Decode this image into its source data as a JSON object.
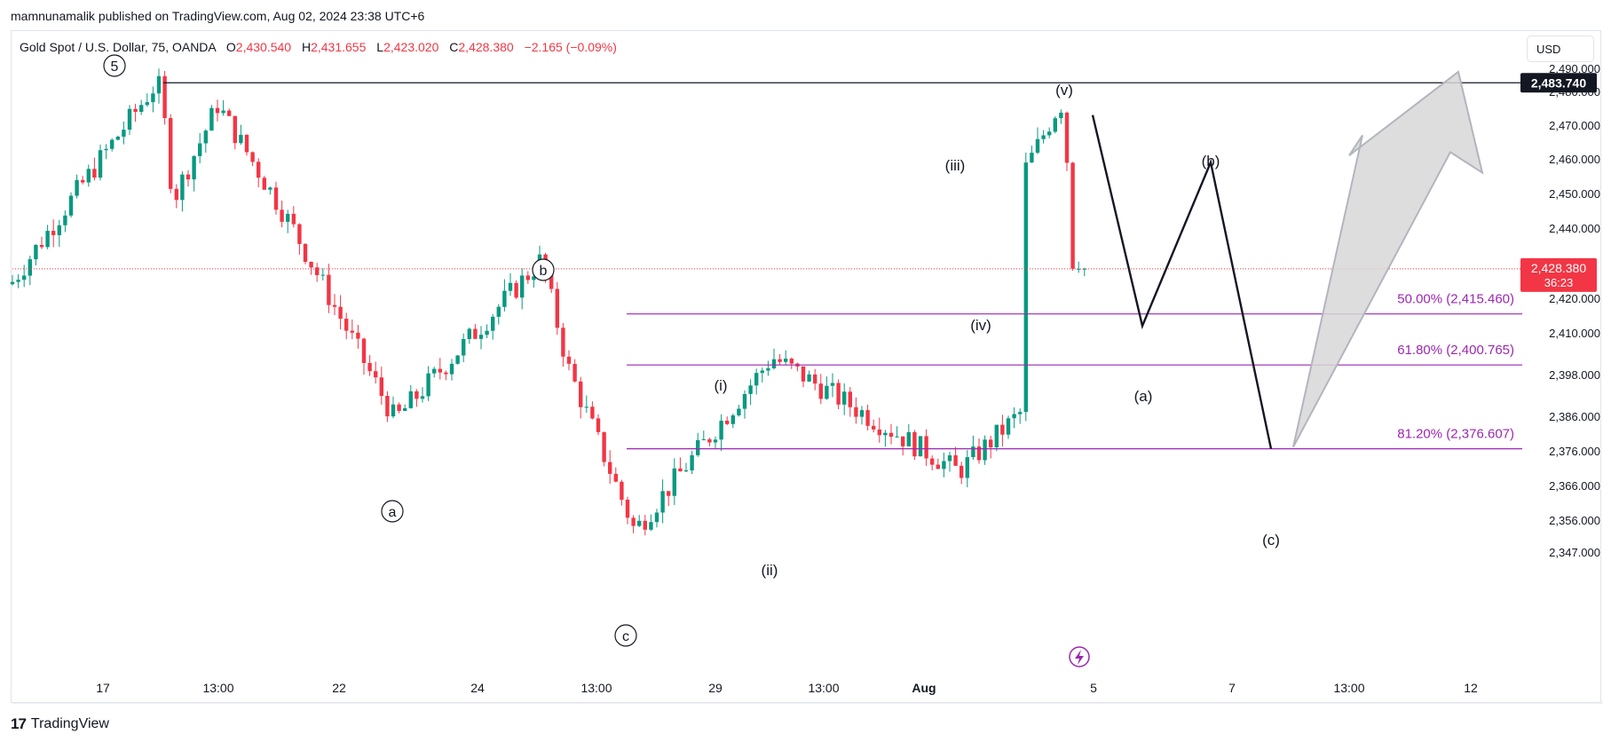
{
  "header": {
    "publish_line": "mamnunamalik published on TradingView.com, Aug 02, 2024 23:38 UTC+6"
  },
  "legend": {
    "symbol": "Gold Spot / U.S. Dollar, 75, OANDA",
    "open_label": "O",
    "open_value": "2,430.540",
    "high_label": "H",
    "high_value": "2,431.655",
    "low_label": "L",
    "low_value": "2,423.020",
    "close_label": "C",
    "close_value": "2,428.380",
    "change": "−2.165 (−0.09%)"
  },
  "toolbar": {
    "currency_label": "USD"
  },
  "footer": {
    "brand_mark": "17",
    "brand": "TradingView"
  },
  "colors": {
    "up": "#089981",
    "down": "#f23645",
    "fib": "#9c27b0",
    "axis_text": "#131722",
    "arrow_fill": "#d7d7d7",
    "arrow_stroke": "#b2b5be"
  },
  "chart_data": {
    "type": "candlestick",
    "symbol": "XAUUSD",
    "timeframe": "75",
    "y_ticks": [
      "2,490.000",
      "2,480.000",
      "2,470.000",
      "2,460.000",
      "2,450.000",
      "2,440.000",
      "2,420.000",
      "2,410.000",
      "2,398.000",
      "2,386.000",
      "2,376.000",
      "2,366.000",
      "2,356.000",
      "2,347.000"
    ],
    "x_ticks": [
      "17",
      "13:00",
      "22",
      "24",
      "13:00",
      "29",
      "13:00",
      "Aug",
      "5",
      "7",
      "13:00",
      "12"
    ],
    "price_labels": [
      {
        "text": "2,483.740",
        "style": "black"
      },
      {
        "text": "2,428.380",
        "sub": "36:23",
        "style": "red"
      }
    ],
    "horizontal_levels": [
      {
        "name": "resistance",
        "value": 2483.74
      },
      {
        "name": "fib-50",
        "label": "50.00% (2,415.460)",
        "value": 2415.46
      },
      {
        "name": "fib-61.8",
        "label": "61.80% (2,400.765)",
        "value": 2400.765
      },
      {
        "name": "fib-81.2",
        "label": "81.20% (2,376.607)",
        "value": 2376.607
      }
    ],
    "current_price": 2428.38,
    "wave_labels": [
      {
        "text": "5",
        "circled": true
      },
      {
        "text": "a",
        "circled": true
      },
      {
        "text": "b",
        "circled": true
      },
      {
        "text": "c",
        "circled": true
      },
      {
        "text": "(i)",
        "circled": false
      },
      {
        "text": "(ii)",
        "circled": false
      },
      {
        "text": "(iii)",
        "circled": false
      },
      {
        "text": "(iv)",
        "circled": false
      },
      {
        "text": "(v)",
        "circled": false
      },
      {
        "text": "(a)",
        "circled": false
      },
      {
        "text": "(b)",
        "circled": false
      },
      {
        "text": "(c)",
        "circled": false
      }
    ],
    "path_points": [
      {
        "x": "Aug 2 02:00",
        "y": 2473
      },
      {
        "x": "Aug 5 20:00",
        "y": 2412
      },
      {
        "x": "Aug 6 20:00",
        "y": 2459
      },
      {
        "x": "Aug 8 04:00",
        "y": 2376.6
      },
      {
        "x": "Aug 8 08:00",
        "y": 2378
      }
    ],
    "anchor_points": [
      {
        "name": "start",
        "y": 2424
      },
      {
        "name": "w5",
        "y": 2483.7
      },
      {
        "name": "d1",
        "y": 2448
      },
      {
        "name": "h1",
        "y": 2476
      },
      {
        "name": "d2",
        "y": 2440
      },
      {
        "name": "a",
        "y": 2385
      },
      {
        "name": "b",
        "y": 2431
      },
      {
        "name": "d3",
        "y": 2400
      },
      {
        "name": "c",
        "y": 2353
      },
      {
        "name": "i",
        "y": 2403
      },
      {
        "name": "ii",
        "y": 2370
      },
      {
        "name": "d4",
        "y": 2387
      },
      {
        "name": "iii",
        "y": 2458
      },
      {
        "name": "iv",
        "y": 2430
      },
      {
        "name": "v",
        "y": 2477
      },
      {
        "name": "last",
        "y": 2428.4
      }
    ]
  }
}
